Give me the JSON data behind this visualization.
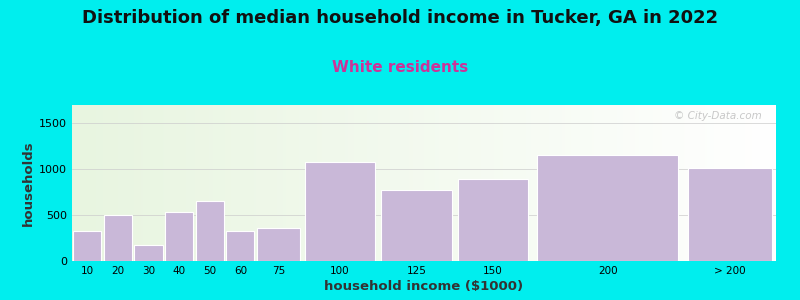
{
  "title": "Distribution of median household income in Tucker, GA in 2022",
  "subtitle": "White residents",
  "xlabel": "household income ($1000)",
  "ylabel": "households",
  "background_outer": "#00EEEE",
  "bar_color": "#c9b8d8",
  "bar_edge_color": "#ffffff",
  "title_fontsize": 13,
  "subtitle_fontsize": 11,
  "subtitle_color": "#cc3399",
  "categories": [
    "10",
    "20",
    "30",
    "40",
    "50",
    "60",
    "75",
    "100",
    "125",
    "150",
    "200",
    "> 200"
  ],
  "values": [
    330,
    500,
    175,
    530,
    650,
    330,
    360,
    1080,
    775,
    890,
    1150,
    1010
  ],
  "bin_edges": [
    0,
    10,
    20,
    30,
    40,
    50,
    60,
    75,
    100,
    125,
    150,
    200,
    230
  ],
  "ylim": [
    0,
    1700
  ],
  "yticks": [
    0,
    500,
    1000,
    1500
  ],
  "watermark": "© City-Data.com"
}
